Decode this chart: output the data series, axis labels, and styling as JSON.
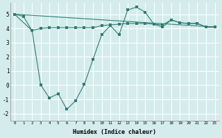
{
  "xlabel": "Humidex (Indice chaleur)",
  "background_color": "#d4ecec",
  "grid_color": "#ffffff",
  "line_color": "#2e7d72",
  "xlim": [
    -0.5,
    23.5
  ],
  "ylim": [
    -2.5,
    5.8
  ],
  "xticks": [
    0,
    1,
    2,
    3,
    4,
    5,
    6,
    7,
    8,
    9,
    10,
    11,
    12,
    13,
    14,
    15,
    16,
    17,
    18,
    19,
    20,
    21,
    22,
    23
  ],
  "yticks": [
    -2,
    -1,
    0,
    1,
    2,
    3,
    4,
    5
  ],
  "series1_x": [
    0,
    1,
    2,
    3,
    4,
    5,
    6,
    7,
    8,
    9,
    10,
    11,
    12,
    13,
    14,
    15,
    16,
    17,
    18,
    19,
    20,
    21,
    22,
    23
  ],
  "series1_y": [
    5.0,
    4.85,
    3.85,
    4.0,
    4.05,
    4.05,
    4.05,
    4.05,
    4.05,
    4.05,
    4.2,
    4.25,
    4.3,
    4.35,
    4.35,
    4.35,
    4.3,
    4.25,
    4.6,
    4.4,
    4.35,
    4.35,
    4.1,
    4.1
  ],
  "series2_x": [
    0,
    2,
    3,
    4,
    5,
    6,
    7,
    8,
    9,
    10,
    11,
    12,
    13,
    14,
    15,
    16,
    17,
    18,
    19,
    20,
    21,
    22,
    23
  ],
  "series2_y": [
    5.0,
    3.85,
    0.0,
    -0.9,
    -0.6,
    -1.7,
    -1.1,
    0.05,
    1.8,
    3.55,
    4.2,
    3.55,
    5.3,
    5.5,
    5.15,
    4.3,
    4.1,
    4.6,
    4.4,
    4.35,
    4.35,
    4.1,
    4.1
  ],
  "series3_x": [
    0,
    23
  ],
  "series3_y": [
    5.0,
    4.1
  ]
}
